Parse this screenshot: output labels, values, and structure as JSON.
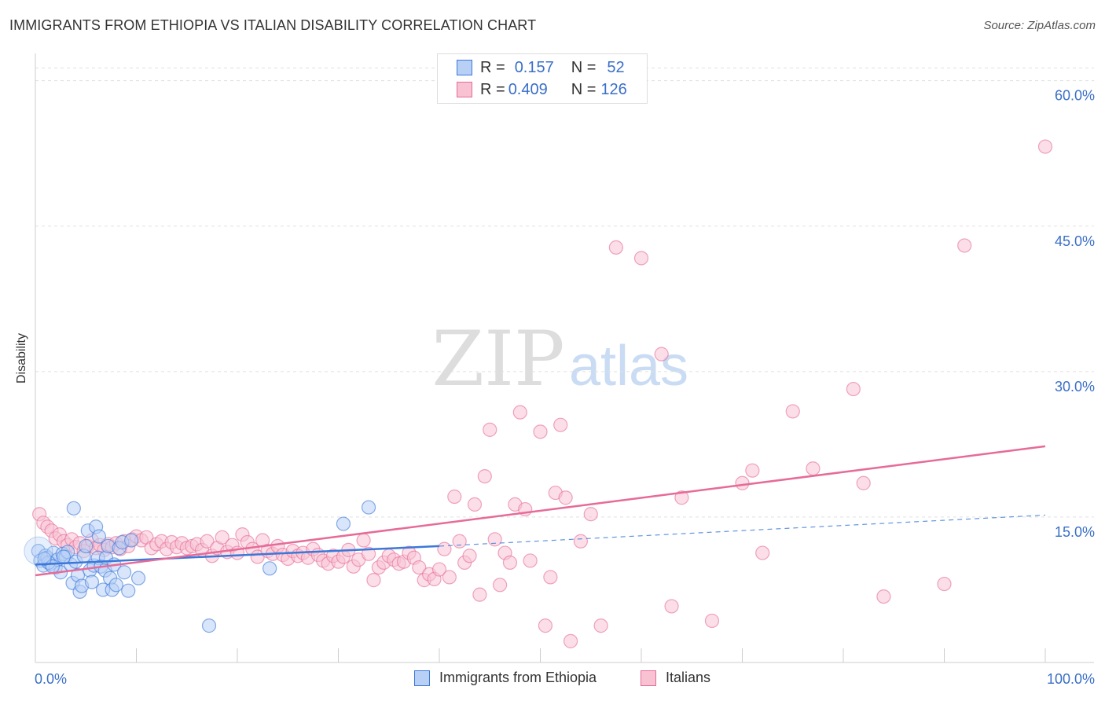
{
  "title": "IMMIGRANTS FROM ETHIOPIA VS ITALIAN DISABILITY CORRELATION CHART",
  "source": "Source: ZipAtlas.com",
  "watermark": {
    "zip": "ZIP",
    "atlas": "atlas"
  },
  "legend_top": {
    "r_label": "R =",
    "n_label": "N =",
    "rows": [
      {
        "r": "0.157",
        "n": "52"
      },
      {
        "r": "0.409",
        "n": "126"
      }
    ]
  },
  "colors": {
    "blue": "#3b78d8",
    "blue_fill": "#b8d0f5",
    "pink": "#e66b98",
    "pink_fill": "#f8c2d3",
    "axis_label": "#3a6fc8"
  },
  "chart_data": {
    "type": "scatter",
    "title": "IMMIGRANTS FROM ETHIOPIA VS ITALIAN DISABILITY CORRELATION CHART",
    "xlabel": "",
    "ylabel": "Disability",
    "xlim": [
      0,
      100
    ],
    "ylim": [
      0,
      62
    ],
    "x_tick_labels": [
      "0.0%",
      "100.0%"
    ],
    "y_ticks": [
      15,
      30,
      45,
      60
    ],
    "y_tick_labels": [
      "15.0%",
      "30.0%",
      "45.0%",
      "60.0%"
    ],
    "grid": true,
    "legend_position": "top-center",
    "series": [
      {
        "name": "Immigrants from Ethiopia",
        "color": "#3b78d8",
        "R": 0.157,
        "N": 52,
        "trend": {
          "x0": 0,
          "y0": 10.1,
          "x1": 40,
          "y1": 12.0,
          "dashed_to_x": 100,
          "dashed_to_y": 15.2
        },
        "points": [
          [
            0.3,
            11.5
          ],
          [
            0.5,
            10.5
          ],
          [
            0.8,
            10.0
          ],
          [
            1.0,
            11.0
          ],
          [
            1.2,
            10.8
          ],
          [
            1.5,
            10.2
          ],
          [
            1.8,
            11.3
          ],
          [
            2.0,
            9.8
          ],
          [
            2.2,
            10.6
          ],
          [
            2.5,
            9.3
          ],
          [
            2.7,
            11.2
          ],
          [
            3.0,
            10.9
          ],
          [
            3.2,
            11.4
          ],
          [
            3.5,
            10.1
          ],
          [
            3.7,
            8.2
          ],
          [
            3.8,
            15.9
          ],
          [
            4.0,
            10.4
          ],
          [
            4.2,
            9.0
          ],
          [
            4.4,
            7.3
          ],
          [
            4.6,
            7.9
          ],
          [
            4.8,
            11.0
          ],
          [
            5.0,
            12.0
          ],
          [
            5.2,
            13.6
          ],
          [
            5.4,
            9.5
          ],
          [
            5.6,
            8.3
          ],
          [
            5.8,
            10.0
          ],
          [
            6.0,
            14.0
          ],
          [
            6.2,
            10.8
          ],
          [
            6.3,
            13.0
          ],
          [
            6.5,
            9.9
          ],
          [
            6.7,
            7.5
          ],
          [
            6.9,
            9.5
          ],
          [
            7.0,
            10.8
          ],
          [
            7.2,
            12.0
          ],
          [
            7.4,
            8.7
          ],
          [
            7.6,
            7.5
          ],
          [
            7.8,
            10.1
          ],
          [
            8.0,
            8.0
          ],
          [
            8.3,
            11.8
          ],
          [
            8.6,
            12.4
          ],
          [
            8.8,
            9.3
          ],
          [
            9.2,
            7.4
          ],
          [
            9.5,
            12.6
          ],
          [
            10.2,
            8.7
          ],
          [
            17.2,
            3.8
          ],
          [
            23.2,
            9.7
          ],
          [
            30.5,
            14.3
          ],
          [
            33.0,
            16.0
          ],
          [
            1.3,
            10.3
          ],
          [
            2.8,
            10.9
          ],
          [
            1.7,
            9.9
          ],
          [
            0.9,
            10.7
          ]
        ]
      },
      {
        "name": "Italians",
        "color": "#e66b98",
        "R": 0.409,
        "N": 126,
        "trend": {
          "x0": 0,
          "y0": 9.0,
          "x1": 100,
          "y1": 22.3
        },
        "points": [
          [
            0.4,
            15.3
          ],
          [
            0.8,
            14.4
          ],
          [
            1.2,
            14.0
          ],
          [
            1.6,
            13.6
          ],
          [
            2.0,
            12.8
          ],
          [
            2.4,
            13.2
          ],
          [
            2.8,
            12.5
          ],
          [
            3.2,
            12.1
          ],
          [
            3.6,
            12.7
          ],
          [
            4.0,
            11.9
          ],
          [
            4.4,
            12.3
          ],
          [
            4.8,
            11.5
          ],
          [
            5.2,
            12.0
          ],
          [
            5.6,
            12.6
          ],
          [
            6.0,
            11.8
          ],
          [
            6.4,
            12.1
          ],
          [
            6.8,
            11.6
          ],
          [
            7.2,
            12.2
          ],
          [
            7.6,
            11.9
          ],
          [
            8.0,
            12.3
          ],
          [
            8.4,
            11.7
          ],
          [
            8.8,
            12.5
          ],
          [
            9.2,
            12.0
          ],
          [
            9.6,
            12.7
          ],
          [
            10.0,
            13.0
          ],
          [
            10.5,
            12.6
          ],
          [
            11.0,
            12.9
          ],
          [
            11.5,
            11.8
          ],
          [
            12.0,
            12.2
          ],
          [
            12.5,
            12.5
          ],
          [
            13.0,
            11.7
          ],
          [
            13.5,
            12.4
          ],
          [
            14.0,
            11.9
          ],
          [
            14.5,
            12.3
          ],
          [
            15.0,
            11.8
          ],
          [
            15.5,
            12.0
          ],
          [
            16.0,
            12.2
          ],
          [
            16.5,
            11.6
          ],
          [
            17.0,
            12.5
          ],
          [
            17.5,
            11.0
          ],
          [
            18.0,
            11.8
          ],
          [
            18.5,
            12.9
          ],
          [
            19.0,
            11.4
          ],
          [
            19.5,
            12.1
          ],
          [
            20.0,
            11.3
          ],
          [
            20.5,
            13.2
          ],
          [
            21.0,
            12.4
          ],
          [
            21.5,
            11.7
          ],
          [
            22.0,
            10.9
          ],
          [
            22.5,
            12.6
          ],
          [
            23.0,
            11.5
          ],
          [
            23.5,
            11.2
          ],
          [
            24.0,
            12.0
          ],
          [
            24.5,
            11.1
          ],
          [
            25.0,
            10.7
          ],
          [
            25.5,
            11.5
          ],
          [
            26.0,
            11.0
          ],
          [
            26.5,
            11.3
          ],
          [
            27.0,
            10.8
          ],
          [
            27.5,
            11.7
          ],
          [
            28.0,
            11.1
          ],
          [
            28.5,
            10.5
          ],
          [
            29.0,
            10.2
          ],
          [
            29.5,
            11.0
          ],
          [
            30.0,
            10.4
          ],
          [
            30.5,
            10.9
          ],
          [
            31.0,
            11.6
          ],
          [
            31.5,
            9.9
          ],
          [
            32.0,
            10.6
          ],
          [
            32.5,
            12.6
          ],
          [
            33.0,
            11.2
          ],
          [
            33.5,
            8.5
          ],
          [
            34.0,
            9.8
          ],
          [
            34.5,
            10.3
          ],
          [
            35.0,
            11.0
          ],
          [
            35.5,
            10.6
          ],
          [
            36.0,
            10.2
          ],
          [
            36.5,
            10.4
          ],
          [
            37.0,
            11.3
          ],
          [
            37.5,
            10.8
          ],
          [
            38.0,
            9.8
          ],
          [
            38.5,
            8.5
          ],
          [
            39.0,
            9.1
          ],
          [
            39.5,
            8.6
          ],
          [
            40.0,
            9.6
          ],
          [
            40.5,
            11.7
          ],
          [
            41.0,
            8.8
          ],
          [
            41.5,
            17.1
          ],
          [
            42.0,
            12.5
          ],
          [
            42.5,
            10.3
          ],
          [
            43.0,
            11.0
          ],
          [
            43.5,
            16.3
          ],
          [
            44.0,
            7.0
          ],
          [
            44.5,
            19.2
          ],
          [
            45.0,
            24.0
          ],
          [
            45.5,
            12.7
          ],
          [
            46.0,
            8.0
          ],
          [
            46.5,
            11.3
          ],
          [
            47.0,
            10.3
          ],
          [
            47.5,
            16.3
          ],
          [
            48.0,
            25.8
          ],
          [
            48.5,
            15.8
          ],
          [
            49.0,
            10.5
          ],
          [
            50.0,
            23.8
          ],
          [
            50.5,
            3.8
          ],
          [
            51.0,
            8.8
          ],
          [
            51.5,
            17.5
          ],
          [
            52.0,
            24.5
          ],
          [
            52.5,
            17.0
          ],
          [
            53.0,
            2.2
          ],
          [
            54.0,
            12.5
          ],
          [
            55.0,
            15.3
          ],
          [
            56.0,
            3.8
          ],
          [
            57.5,
            42.8
          ],
          [
            60.0,
            41.7
          ],
          [
            62.0,
            31.8
          ],
          [
            63.0,
            5.8
          ],
          [
            64.0,
            17.0
          ],
          [
            67.0,
            4.3
          ],
          [
            70.0,
            18.5
          ],
          [
            71.0,
            19.8
          ],
          [
            72.0,
            11.3
          ],
          [
            75.0,
            25.9
          ],
          [
            77.0,
            20.0
          ],
          [
            81.0,
            28.2
          ],
          [
            82.0,
            18.5
          ],
          [
            84.0,
            6.8
          ],
          [
            90.0,
            8.1
          ],
          [
            92.0,
            43.0
          ],
          [
            100.0,
            53.2
          ]
        ]
      }
    ]
  },
  "bottom_legend": [
    "Immigrants from Ethiopia",
    "Italians"
  ]
}
